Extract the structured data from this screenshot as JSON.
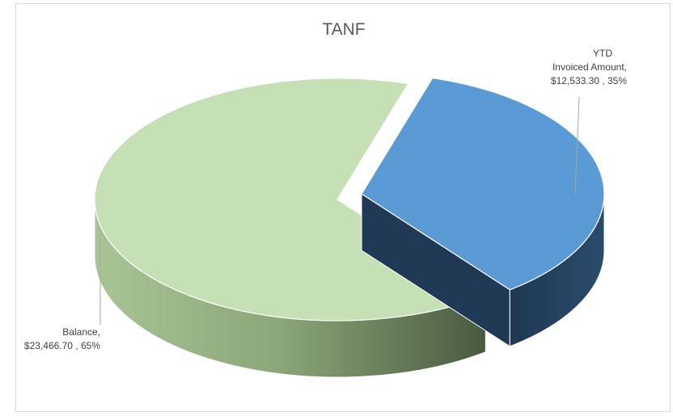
{
  "chart_data": {
    "type": "pie",
    "style": "3d-exploded",
    "title": "TANF",
    "slices": [
      {
        "name": "YTD Invoiced Amount",
        "value": 12533.3,
        "percent": 35,
        "label_lines": [
          "YTD",
          "Invoiced Amount,",
          "$12,533.30 , 35%"
        ],
        "color": "#5b9bd5",
        "side_color": "#203a55"
      },
      {
        "name": "Balance",
        "value": 23466.7,
        "percent": 65,
        "label_lines": [
          "Balance,",
          "$23,466.70 , 65%"
        ],
        "color": "#c5e0b4",
        "side_color": "#7f9a6e"
      }
    ],
    "legend": "none",
    "data_labels": "outside with leader lines"
  }
}
